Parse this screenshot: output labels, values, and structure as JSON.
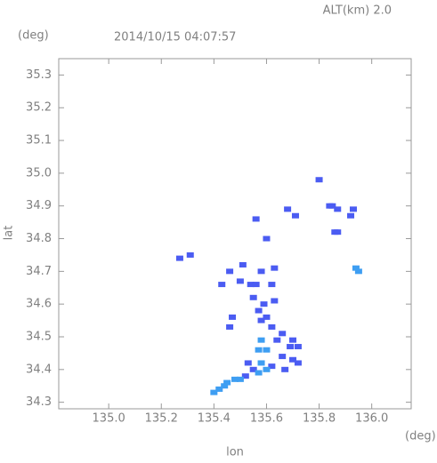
{
  "chart_data": {
    "type": "scatter",
    "title": "2014/10/15 04:07:57",
    "subtitle": "ALT(km) 2.0",
    "x_label": "lon",
    "y_label": "lat",
    "x_unit": "(deg)",
    "y_unit": "(deg)",
    "xlim": [
      134.81,
      136.15
    ],
    "ylim": [
      34.28,
      35.35
    ],
    "xticks": [
      {
        "value": 135,
        "label": "135.0"
      },
      135.2,
      135.4,
      135.6,
      135.8,
      {
        "value": 136,
        "label": "136.0"
      }
    ],
    "yticks": [
      34.3,
      34.4,
      34.5,
      34.6,
      34.7,
      34.8,
      34.9,
      {
        "value": 35,
        "label": "35.0"
      },
      35.1,
      35.2,
      35.3
    ],
    "series": [
      {
        "color": "#4b5cf2",
        "x": [
          135.8,
          135.84,
          135.85,
          135.87,
          135.93,
          135.92,
          135.87,
          135.86,
          135.71,
          135.68,
          135.6,
          135.56,
          135.27,
          135.31,
          135.51,
          135.58,
          135.63,
          135.46,
          135.54,
          135.5,
          135.43,
          135.56,
          135.62,
          135.55,
          135.59,
          135.63,
          135.57,
          135.6,
          135.58,
          135.47,
          135.46,
          135.62,
          135.66,
          135.7,
          135.69,
          135.72,
          135.64,
          135.66,
          135.7,
          135.72,
          135.67,
          135.62,
          135.55,
          135.52,
          135.53
        ],
        "y": [
          34.98,
          34.9,
          34.9,
          34.89,
          34.89,
          34.87,
          34.82,
          34.82,
          34.87,
          34.89,
          34.8,
          34.86,
          34.74,
          34.75,
          34.72,
          34.7,
          34.71,
          34.7,
          34.66,
          34.67,
          34.66,
          34.66,
          34.66,
          34.62,
          34.6,
          34.61,
          34.58,
          34.56,
          34.55,
          34.56,
          34.53,
          34.53,
          34.51,
          34.49,
          34.47,
          34.47,
          34.49,
          34.44,
          34.43,
          34.42,
          34.4,
          34.41,
          34.4,
          34.38,
          34.42
        ]
      },
      {
        "color": "#3e9ef2",
        "x": [
          135.95,
          135.94,
          135.58,
          135.57,
          135.6,
          135.6,
          135.57,
          135.5,
          135.48,
          135.45,
          135.44,
          135.42,
          135.4,
          135.58
        ],
        "y": [
          34.7,
          34.71,
          34.49,
          34.46,
          34.46,
          34.4,
          34.39,
          34.37,
          34.37,
          34.36,
          34.35,
          34.34,
          34.33,
          34.42
        ]
      }
    ]
  }
}
